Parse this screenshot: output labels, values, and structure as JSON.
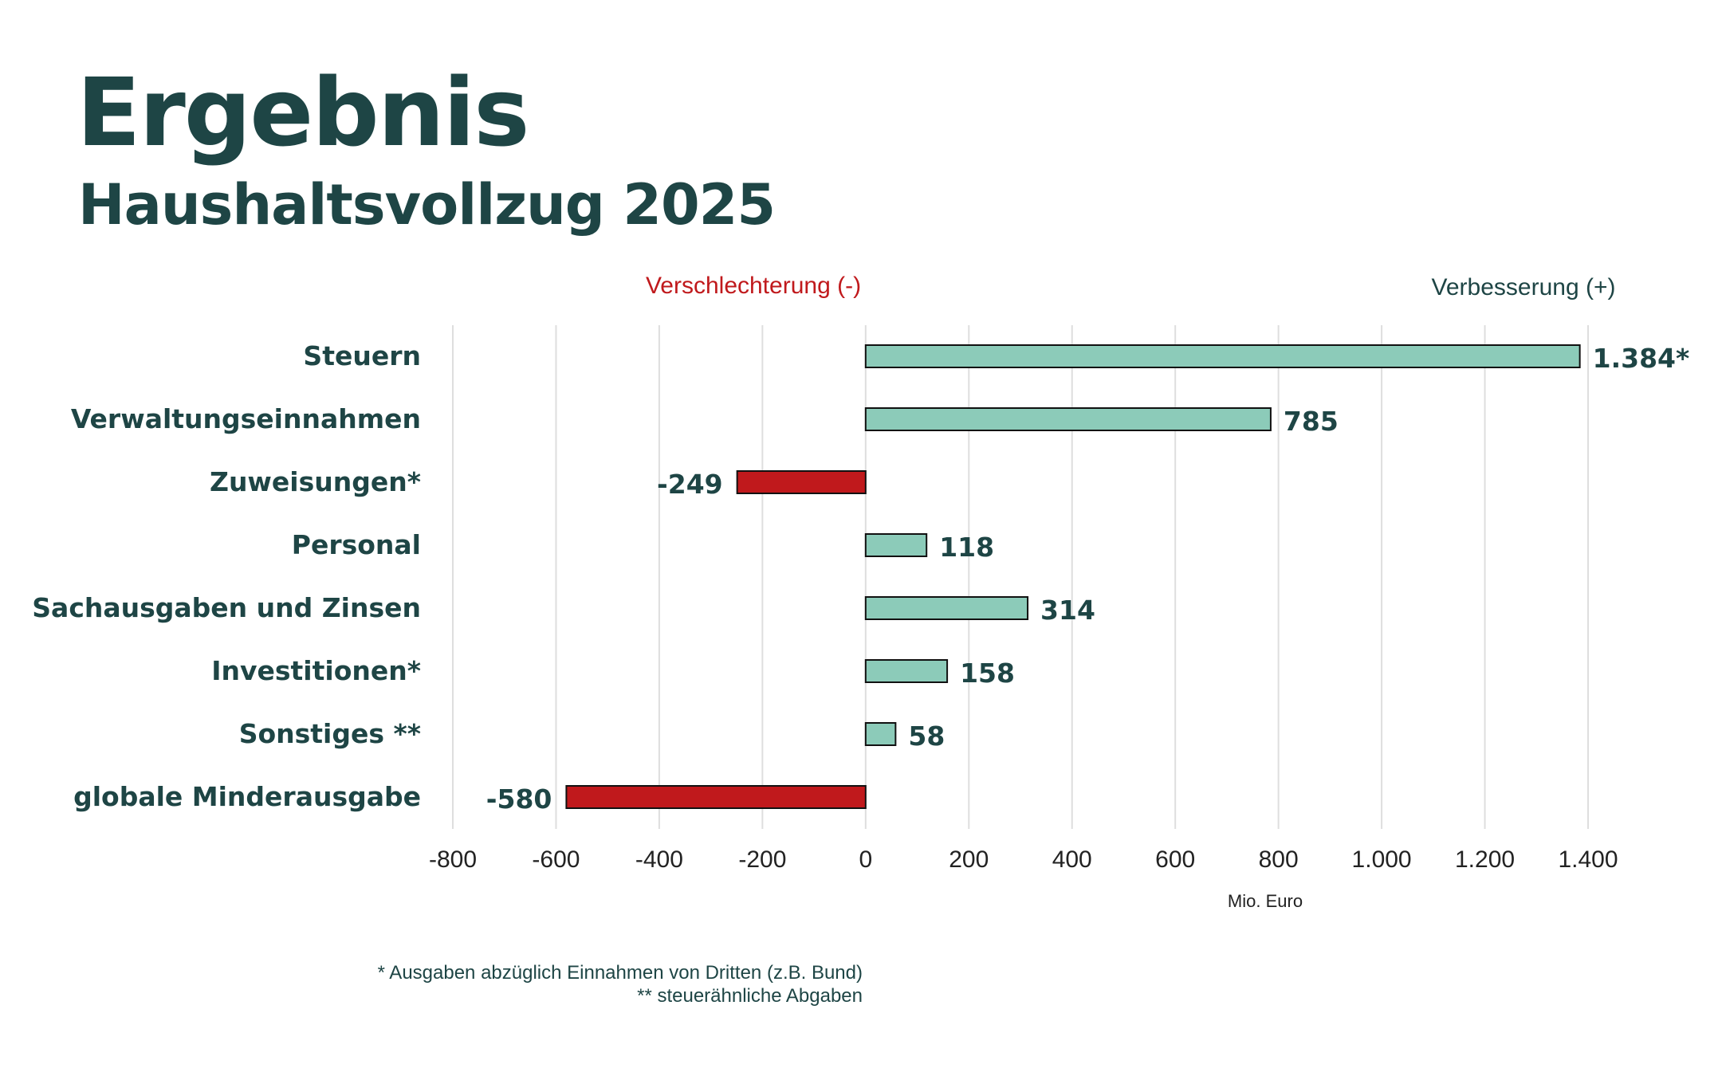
{
  "title": "Ergebnis",
  "subtitle": "Haushaltsvollzug 2025",
  "colors": {
    "text": "#1e4545",
    "positive": "#8ccbb9",
    "negative": "#c0191c",
    "negative_label": "#c0191c",
    "grid": "#dedede"
  },
  "chart_data": {
    "type": "bar",
    "orientation": "horizontal",
    "header_negative": "Verschlechterung (-)",
    "header_positive": "Verbesserung (+)",
    "categories": [
      "Steuern",
      "Verwaltungseinnahmen",
      "Zuweisungen*",
      "Personal",
      "Sachausgaben und Zinsen",
      "Investitionen*",
      "Sonstiges **",
      "globale Minderausgabe"
    ],
    "values": [
      1384,
      785,
      -249,
      118,
      314,
      158,
      58,
      -580
    ],
    "data_labels": [
      "1.384*",
      "785",
      "-249",
      "118",
      "314",
      "158",
      "58",
      "-580"
    ],
    "xlim": [
      -800,
      1400
    ],
    "xticks": [
      -800,
      -600,
      -400,
      -200,
      0,
      200,
      400,
      600,
      800,
      1000,
      1200,
      1400
    ],
    "xtick_labels": [
      "-800",
      "-600",
      "-400",
      "-200",
      "0",
      "200",
      "400",
      "600",
      "800",
      "1.000",
      "1.200",
      "1.400"
    ],
    "xlabel": "Mio. Euro",
    "grid": true,
    "legend": "none"
  },
  "footnotes": [
    "* Ausgaben abzüglich Einnahmen von Dritten (z.B. Bund)",
    "** steuerähnliche Abgaben"
  ]
}
